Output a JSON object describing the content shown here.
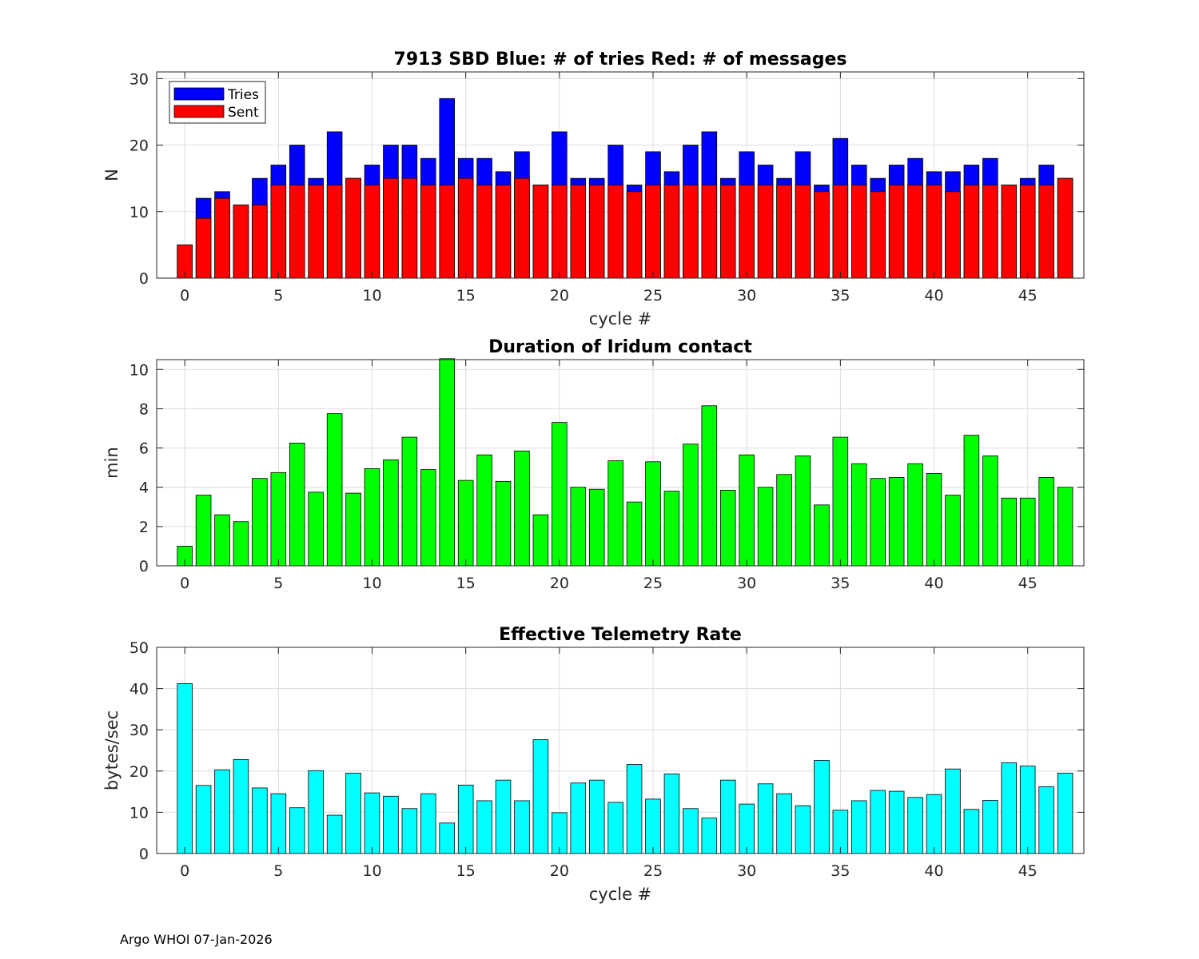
{
  "footer": "Argo WHOI 07-Jan-2026",
  "chart_data": [
    {
      "type": "bar",
      "title": "7913 SBD  Blue: # of tries   Red: # of messages",
      "xlabel": "cycle #",
      "ylabel": "N",
      "xlim": [
        -1.5,
        48
      ],
      "ylim": [
        0,
        31
      ],
      "xticks": [
        0,
        5,
        10,
        15,
        20,
        25,
        30,
        35,
        40,
        45
      ],
      "yticks": [
        0,
        10,
        20,
        30
      ],
      "grid": true,
      "legend_position": "top-left",
      "x": [
        0,
        1,
        2,
        3,
        4,
        5,
        6,
        7,
        8,
        9,
        10,
        11,
        12,
        13,
        14,
        15,
        16,
        17,
        18,
        19,
        20,
        21,
        22,
        23,
        24,
        25,
        26,
        27,
        28,
        29,
        30,
        31,
        32,
        33,
        34,
        35,
        36,
        37,
        38,
        39,
        40,
        41,
        42,
        43,
        44,
        45,
        46,
        47
      ],
      "series": [
        {
          "name": "Tries",
          "color": "#0000ff",
          "values": [
            5,
            12,
            13,
            11,
            15,
            17,
            20,
            15,
            22,
            15,
            17,
            20,
            20,
            18,
            27,
            18,
            18,
            16,
            19,
            14,
            22,
            15,
            15,
            20,
            14,
            19,
            16,
            20,
            22,
            15,
            19,
            17,
            15,
            19,
            14,
            21,
            17,
            15,
            17,
            18,
            16,
            16,
            17,
            18,
            14,
            15,
            17,
            15
          ]
        },
        {
          "name": "Sent",
          "color": "#ff0000",
          "values": [
            5,
            9,
            12,
            11,
            11,
            14,
            14,
            14,
            14,
            15,
            14,
            15,
            15,
            14,
            14,
            15,
            14,
            14,
            15,
            14,
            14,
            14,
            14,
            14,
            13,
            14,
            14,
            14,
            14,
            14,
            14,
            14,
            14,
            14,
            13,
            14,
            14,
            13,
            14,
            14,
            14,
            13,
            14,
            14,
            14,
            14,
            14,
            15
          ]
        }
      ]
    },
    {
      "type": "bar",
      "title": "Duration of Iridum contact",
      "xlabel": "",
      "ylabel": "min",
      "xlim": [
        -1.5,
        48
      ],
      "ylim": [
        0,
        10.5
      ],
      "xticks": [
        0,
        5,
        10,
        15,
        20,
        25,
        30,
        35,
        40,
        45
      ],
      "yticks": [
        0,
        2,
        4,
        6,
        8,
        10
      ],
      "grid": true,
      "x": [
        -1,
        0,
        1,
        2,
        3,
        4,
        5,
        6,
        7,
        8,
        9,
        10,
        11,
        12,
        13,
        14,
        15,
        16,
        17,
        18,
        19,
        20,
        21,
        22,
        23,
        24,
        25,
        26,
        27,
        28,
        29,
        30,
        31,
        32,
        33,
        34,
        35,
        36,
        37,
        38,
        39,
        40,
        41,
        42,
        43,
        44,
        45,
        46,
        47
      ],
      "series": [
        {
          "name": "Duration",
          "color": "#00ff00",
          "values": [
            0,
            1.0,
            3.6,
            2.6,
            2.25,
            4.45,
            4.75,
            6.25,
            3.75,
            7.75,
            3.7,
            4.95,
            5.4,
            6.55,
            4.9,
            10.55,
            4.35,
            5.65,
            4.3,
            5.85,
            2.6,
            7.3,
            4.0,
            3.9,
            5.35,
            3.25,
            5.3,
            3.8,
            6.2,
            8.15,
            3.85,
            5.65,
            4.0,
            4.65,
            5.6,
            3.1,
            6.55,
            5.2,
            4.45,
            4.5,
            5.2,
            4.7,
            3.6,
            6.65,
            5.6,
            3.45,
            3.45,
            4.5,
            4.0
          ]
        }
      ]
    },
    {
      "type": "bar",
      "title": "Effective Telemetry Rate",
      "xlabel": "cycle #",
      "ylabel": "bytes/sec",
      "xlim": [
        -1.5,
        48
      ],
      "ylim": [
        0,
        50
      ],
      "xticks": [
        0,
        5,
        10,
        15,
        20,
        25,
        30,
        35,
        40,
        45
      ],
      "yticks": [
        0,
        10,
        20,
        30,
        40,
        50
      ],
      "grid": true,
      "x": [
        0,
        1,
        2,
        3,
        4,
        5,
        6,
        7,
        8,
        9,
        10,
        11,
        12,
        13,
        14,
        15,
        16,
        17,
        18,
        19,
        20,
        21,
        22,
        23,
        24,
        25,
        26,
        27,
        28,
        29,
        30,
        31,
        32,
        33,
        34,
        35,
        36,
        37,
        38,
        39,
        40,
        41,
        42,
        43,
        44,
        45,
        46,
        47
      ],
      "series": [
        {
          "name": "Rate",
          "color": "#00ffff",
          "values": [
            41.2,
            16.5,
            20.3,
            22.8,
            15.9,
            14.5,
            11.1,
            20.1,
            9.3,
            19.5,
            14.7,
            13.9,
            10.9,
            14.5,
            7.4,
            16.6,
            12.8,
            17.8,
            12.8,
            27.6,
            9.9,
            17.1,
            17.8,
            12.4,
            21.6,
            13.2,
            19.3,
            10.9,
            8.6,
            17.8,
            12.0,
            16.9,
            14.5,
            11.6,
            22.6,
            10.5,
            12.8,
            15.3,
            15.1,
            13.6,
            14.3,
            20.5,
            10.7,
            12.9,
            22.0,
            21.2,
            16.2,
            19.5
          ]
        }
      ]
    }
  ]
}
